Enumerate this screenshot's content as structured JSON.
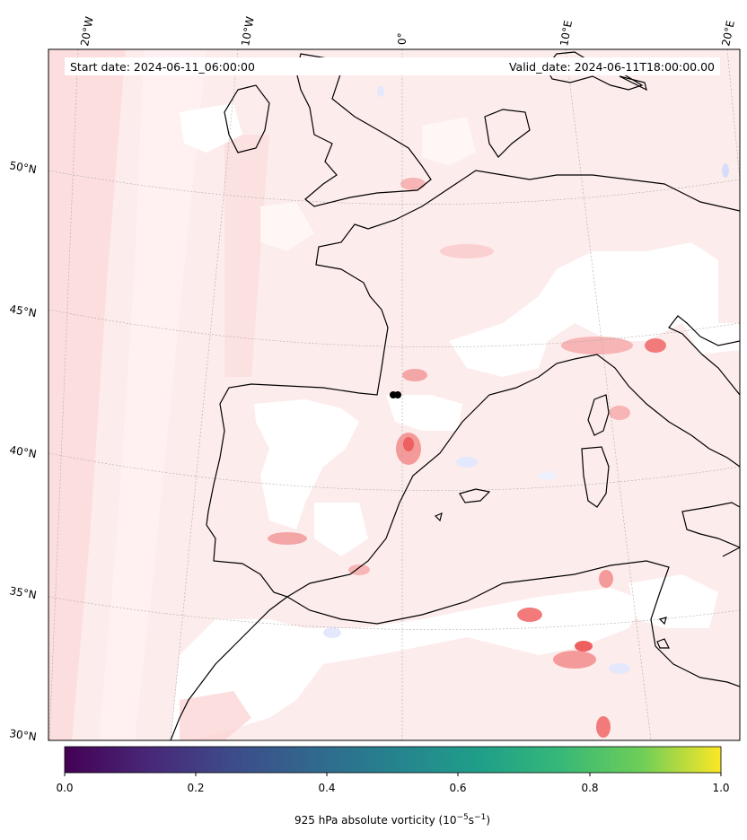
{
  "header": {
    "start_date": "Start date: 2024-06-11_06:00:00",
    "valid_date": "Valid_date: 2024-06-11T18:00:00.00"
  },
  "map": {
    "lon_labels": [
      "20°W",
      "10°W",
      "0°",
      "10°E",
      "20°E"
    ],
    "lat_labels": [
      "50°N",
      "45°N",
      "40°N",
      "35°N",
      "30°N"
    ],
    "field_colors": {
      "positive_light": "#fdecec",
      "positive_mid": "#fbd0d0",
      "positive_strong": "#f27a7a",
      "negative_light": "#e8ecfd",
      "land_outline": "#000000"
    }
  },
  "colorbar": {
    "ticks": [
      "0.0",
      "0.2",
      "0.4",
      "0.6",
      "0.8",
      "1.0"
    ],
    "label": "925 hPa absolute vorticity (10",
    "label_exp1": "−5",
    "label_mid": "s",
    "label_exp2": "−1",
    "label_end": ")",
    "colormap": "viridis"
  }
}
